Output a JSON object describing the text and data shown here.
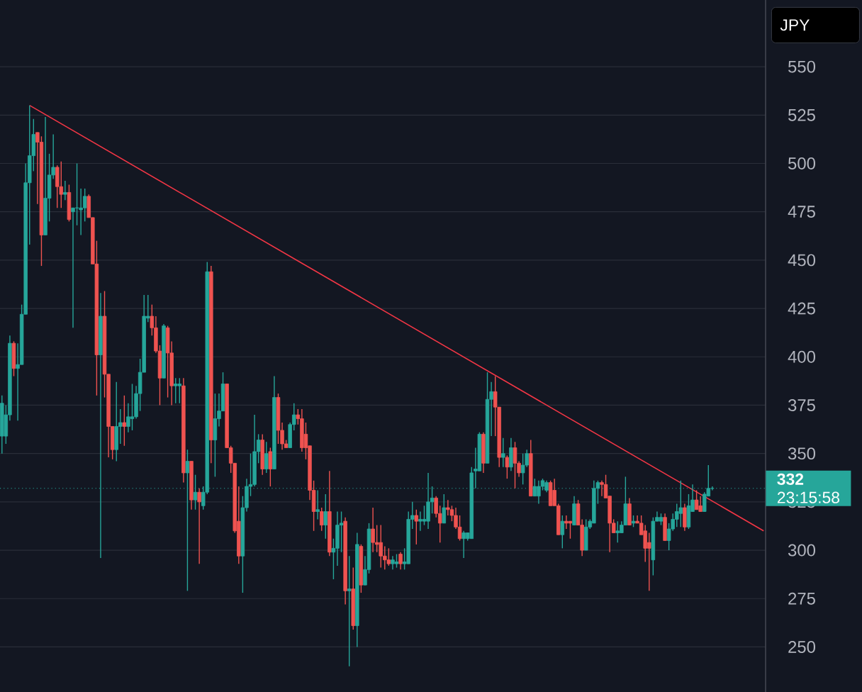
{
  "chart_data": {
    "type": "candlestick",
    "ylabel": "JPY",
    "categories": [
      null,
      null,
      null,
      null,
      null,
      null,
      null,
      null,
      null,
      null,
      null,
      null,
      null,
      null,
      null,
      null,
      null,
      null,
      null,
      null,
      null,
      null,
      null,
      null,
      null,
      null,
      null,
      null,
      null,
      null,
      null,
      null,
      null,
      null,
      null,
      null,
      null,
      null,
      null,
      null,
      null,
      null,
      null,
      null,
      null,
      null,
      null,
      null,
      null,
      null,
      null,
      null,
      null,
      null,
      null,
      null,
      null,
      null,
      null,
      null,
      null,
      null,
      null,
      null,
      null,
      null,
      null,
      null,
      null,
      null,
      null,
      null,
      null,
      null,
      null,
      null,
      null,
      null,
      null,
      null,
      null,
      null,
      null,
      null,
      null,
      null,
      null,
      null,
      null,
      null,
      null,
      null,
      null,
      null,
      null,
      null,
      null,
      null,
      null,
      null,
      null,
      null,
      null,
      null,
      null,
      null,
      null,
      null,
      null,
      null,
      null,
      null,
      null,
      null,
      null,
      null,
      null,
      null,
      null,
      null,
      null,
      null,
      null,
      null,
      null,
      null,
      null,
      null,
      null,
      null,
      null,
      null,
      null,
      null,
      null,
      null,
      null,
      null,
      null,
      null,
      null,
      null,
      null,
      null,
      null,
      null,
      null,
      null,
      null,
      null,
      null,
      null,
      null,
      null,
      null,
      null,
      null,
      null,
      null,
      null,
      null,
      null,
      null,
      null,
      null,
      null,
      null,
      null,
      null,
      null,
      null,
      null,
      null,
      null,
      null,
      null,
      null,
      null,
      null,
      null,
      null,
      null,
      null,
      null,
      null,
      null,
      null,
      null,
      null,
      null,
      null,
      null,
      null,
      null
    ],
    "ohlc": [
      [
        359,
        380,
        350,
        376
      ],
      [
        359,
        375,
        355,
        370
      ],
      [
        370,
        411,
        367,
        407
      ],
      [
        407,
        408,
        390,
        394
      ],
      [
        394,
        407,
        367,
        396
      ],
      [
        396,
        427,
        396,
        422
      ],
      [
        422,
        500,
        422,
        490
      ],
      [
        490,
        530,
        458,
        504
      ],
      [
        504,
        523,
        496,
        515
      ],
      [
        516,
        516,
        479,
        511
      ],
      [
        511,
        514,
        447,
        463
      ],
      [
        463,
        524,
        463,
        482
      ],
      [
        482,
        505,
        470,
        494
      ],
      [
        494,
        515,
        492,
        498
      ],
      [
        498,
        499,
        477,
        488
      ],
      [
        488,
        501,
        477,
        484
      ],
      [
        484,
        491,
        481,
        485
      ],
      [
        485,
        489,
        470,
        471
      ],
      [
        475,
        477,
        415,
        477
      ],
      [
        477,
        500,
        468,
        477
      ],
      [
        476,
        487,
        463,
        477
      ],
      [
        477,
        487,
        470,
        483
      ],
      [
        483,
        484,
        472,
        472
      ],
      [
        472,
        472,
        448,
        448
      ],
      [
        448,
        460,
        380,
        401
      ],
      [
        401,
        433,
        296,
        421
      ],
      [
        421,
        434,
        379,
        391
      ],
      [
        391,
        391,
        348,
        364
      ],
      [
        364,
        364,
        347,
        352
      ],
      [
        352,
        387,
        346,
        364
      ],
      [
        364,
        373,
        355,
        366
      ],
      [
        366,
        380,
        354,
        364
      ],
      [
        364,
        376,
        361,
        369
      ],
      [
        368,
        386,
        362,
        369
      ],
      [
        369,
        385,
        368,
        381
      ],
      [
        381,
        399,
        372,
        392
      ],
      [
        392,
        432,
        392,
        421
      ],
      [
        420,
        432,
        418,
        421
      ],
      [
        421,
        427,
        411,
        415
      ],
      [
        415,
        421,
        402,
        403
      ],
      [
        403,
        406,
        375,
        389
      ],
      [
        389,
        417,
        389,
        416
      ],
      [
        415,
        416,
        379,
        402
      ],
      [
        402,
        408,
        375,
        385
      ],
      [
        385,
        389,
        376,
        386
      ],
      [
        385,
        389,
        376,
        386
      ],
      [
        385,
        389,
        335,
        340
      ],
      [
        340,
        352,
        279,
        346
      ],
      [
        346,
        346,
        321,
        326
      ],
      [
        326,
        339,
        321,
        330
      ],
      [
        330,
        332,
        293,
        325
      ],
      [
        323,
        333,
        321,
        330
      ],
      [
        330,
        449,
        329,
        444
      ],
      [
        444,
        447,
        345,
        357
      ],
      [
        357,
        381,
        338,
        368
      ],
      [
        368,
        381,
        364,
        372
      ],
      [
        372,
        392,
        372,
        386
      ],
      [
        386,
        386,
        353,
        353
      ],
      [
        353,
        354,
        340,
        345
      ],
      [
        345,
        345,
        309,
        310
      ],
      [
        315,
        333,
        293,
        297
      ],
      [
        297,
        328,
        278,
        322
      ],
      [
        322,
        337,
        320,
        333
      ],
      [
        333,
        350,
        328,
        334
      ],
      [
        334,
        370,
        333,
        351
      ],
      [
        351,
        360,
        345,
        357
      ],
      [
        357,
        360,
        339,
        342
      ],
      [
        342,
        356,
        340,
        350
      ],
      [
        351,
        353,
        333,
        342
      ],
      [
        342,
        390,
        342,
        379
      ],
      [
        379,
        381,
        355,
        362
      ],
      [
        362,
        366,
        352,
        355
      ],
      [
        355,
        357,
        353,
        353
      ],
      [
        353,
        366,
        353,
        365
      ],
      [
        365,
        376,
        362,
        370
      ],
      [
        370,
        373,
        365,
        368
      ],
      [
        368,
        373,
        351,
        353
      ],
      [
        360,
        366,
        347,
        353
      ],
      [
        354,
        354,
        326,
        331
      ],
      [
        331,
        336,
        310,
        320
      ],
      [
        320,
        331,
        316,
        321
      ],
      [
        320,
        322,
        310,
        313
      ],
      [
        313,
        329,
        306,
        320
      ],
      [
        320,
        341,
        297,
        299
      ],
      [
        299,
        306,
        285,
        301
      ],
      [
        301,
        320,
        292,
        313
      ],
      [
        313,
        320,
        299,
        314
      ],
      [
        315,
        317,
        272,
        279
      ],
      [
        279,
        297,
        240,
        280
      ],
      [
        280,
        291,
        259,
        261
      ],
      [
        261,
        309,
        250,
        303
      ],
      [
        302,
        303,
        278,
        282
      ],
      [
        282,
        297,
        282,
        290
      ],
      [
        290,
        314,
        288,
        311
      ],
      [
        311,
        322,
        299,
        304
      ],
      [
        304,
        313,
        299,
        303
      ],
      [
        304,
        313,
        291,
        297
      ],
      [
        297,
        302,
        290,
        295
      ],
      [
        295,
        301,
        292,
        293
      ],
      [
        293,
        297,
        290,
        295
      ],
      [
        293,
        298,
        291,
        294
      ],
      [
        298,
        299,
        290,
        293
      ],
      [
        293,
        301,
        290,
        294
      ],
      [
        293,
        320,
        293,
        316
      ],
      [
        316,
        325,
        311,
        318
      ],
      [
        318,
        321,
        303,
        315
      ],
      [
        315,
        320,
        310,
        316
      ],
      [
        315,
        323,
        313,
        316
      ],
      [
        315,
        340,
        311,
        325
      ],
      [
        325,
        333,
        319,
        327
      ],
      [
        327,
        328,
        317,
        319
      ],
      [
        319,
        323,
        304,
        314
      ],
      [
        314,
        329,
        314,
        322
      ],
      [
        322,
        326,
        318,
        321
      ],
      [
        321,
        323,
        315,
        318
      ],
      [
        318,
        322,
        311,
        312
      ],
      [
        312,
        318,
        305,
        306
      ],
      [
        306,
        310,
        296,
        309
      ],
      [
        306,
        309,
        305,
        309
      ],
      [
        306,
        343,
        306,
        340
      ],
      [
        341,
        353,
        332,
        342
      ],
      [
        341,
        361,
        341,
        360
      ],
      [
        360,
        361,
        340,
        345
      ],
      [
        345,
        392,
        345,
        378
      ],
      [
        378,
        387,
        359,
        382
      ],
      [
        382,
        390,
        359,
        374
      ],
      [
        374,
        374,
        343,
        348
      ],
      [
        348,
        358,
        343,
        350
      ],
      [
        348,
        349,
        337,
        343
      ],
      [
        343,
        358,
        341,
        353
      ],
      [
        353,
        356,
        332,
        345
      ],
      [
        345,
        346,
        338,
        340
      ],
      [
        340,
        350,
        334,
        344
      ],
      [
        344,
        352,
        343,
        350
      ],
      [
        350,
        357,
        328,
        328
      ],
      [
        328,
        337,
        328,
        333
      ],
      [
        328,
        336,
        324,
        333
      ],
      [
        333,
        337,
        331,
        336
      ],
      [
        331,
        336,
        330,
        335
      ],
      [
        335,
        336,
        323,
        323
      ],
      [
        331,
        337,
        323,
        323
      ],
      [
        323,
        324,
        308,
        308
      ],
      [
        308,
        318,
        301,
        315
      ],
      [
        315,
        318,
        311,
        314
      ],
      [
        315,
        315,
        306,
        314
      ],
      [
        313,
        328,
        313,
        324
      ],
      [
        324,
        326,
        313,
        313
      ],
      [
        313,
        316,
        297,
        300
      ],
      [
        300,
        316,
        300,
        312
      ],
      [
        312,
        316,
        311,
        315
      ],
      [
        314,
        336,
        314,
        332
      ],
      [
        332,
        336,
        324,
        335
      ],
      [
        335,
        336,
        328,
        334
      ],
      [
        334,
        339,
        327,
        327
      ],
      [
        328,
        328,
        299,
        314
      ],
      [
        314,
        316,
        309,
        309
      ],
      [
        309,
        315,
        304,
        310
      ],
      [
        309,
        315,
        309,
        313
      ],
      [
        313,
        338,
        313,
        324
      ],
      [
        324,
        327,
        313,
        313
      ],
      [
        314,
        318,
        312,
        315
      ],
      [
        315,
        318,
        314,
        314
      ],
      [
        314,
        318,
        308,
        308
      ],
      [
        310,
        313,
        294,
        301
      ],
      [
        304,
        309,
        279,
        301
      ],
      [
        295,
        317,
        287,
        315
      ],
      [
        315,
        320,
        315,
        317
      ],
      [
        315,
        319,
        313,
        317
      ],
      [
        317,
        319,
        305,
        305
      ],
      [
        305,
        314,
        300,
        311
      ],
      [
        311,
        319,
        310,
        316
      ],
      [
        316,
        324,
        312,
        320
      ],
      [
        319,
        336,
        312,
        322
      ],
      [
        322,
        324,
        310,
        312
      ],
      [
        312,
        329,
        311,
        323
      ],
      [
        320,
        334,
        320,
        326
      ],
      [
        326,
        331,
        321,
        321
      ],
      [
        323,
        328,
        320,
        320
      ],
      [
        320,
        330,
        320,
        329
      ],
      [
        328,
        344,
        328,
        332
      ],
      [
        332,
        333,
        331,
        332
      ],
      null,
      null,
      null,
      null,
      null,
      null,
      null,
      null,
      null,
      null,
      null,
      null,
      null
    ],
    "series": [
      {
        "type": "line",
        "color": "#f23645",
        "values": [
          null,
          null,
          null,
          null,
          null,
          null,
          null,
          530,
          null,
          null,
          null,
          null,
          null,
          null,
          null,
          null,
          null,
          null,
          null,
          null,
          null,
          null,
          null,
          null,
          null,
          null,
          null,
          null,
          null,
          null,
          null,
          null,
          null,
          null,
          null,
          null,
          null,
          null,
          null,
          null,
          null,
          null,
          null,
          null,
          null,
          null,
          null,
          null,
          null,
          null,
          null,
          null,
          null,
          null,
          null,
          null,
          null,
          null,
          null,
          null,
          null,
          null,
          null,
          null,
          null,
          null,
          null,
          null,
          null,
          null,
          null,
          null,
          null,
          null,
          null,
          null,
          null,
          null,
          null,
          null,
          null,
          null,
          null,
          null,
          null,
          null,
          null,
          null,
          null,
          null,
          null,
          null,
          null,
          null,
          null,
          null,
          null,
          null,
          null,
          null,
          null,
          null,
          null,
          null,
          null,
          null,
          null,
          null,
          null,
          null,
          null,
          null,
          null,
          null,
          null,
          null,
          null,
          null,
          null,
          null,
          null,
          null,
          null,
          null,
          null,
          null,
          null,
          null,
          null,
          null,
          null,
          null,
          null,
          null,
          null,
          null,
          null,
          null,
          null,
          null,
          null,
          null,
          null,
          null,
          null,
          null,
          null,
          null,
          null,
          null,
          null,
          null,
          null,
          null,
          null,
          null,
          null,
          null,
          null,
          null,
          null,
          null,
          null,
          null,
          null,
          null,
          null,
          null,
          null,
          null,
          null,
          null,
          null,
          null,
          null,
          null,
          null,
          null,
          null,
          null,
          null,
          null,
          null,
          null,
          null,
          null,
          null,
          null,
          null,
          null,
          null,
          null,
          null,
          310
        ]
      }
    ],
    "ref_lines": [
      {
        "axis": "y",
        "value": 332,
        "label": "332",
        "color": "#26a69a",
        "line_style": "dotted"
      }
    ],
    "annotations": [
      "23:15:58"
    ],
    "ylim": [
      226.7,
      584.5
    ],
    "yticks": [
      250,
      275,
      300,
      325,
      350,
      375,
      400,
      425,
      450,
      475,
      500,
      525,
      550
    ],
    "tick_labels": "y",
    "grid": "y"
  }
}
